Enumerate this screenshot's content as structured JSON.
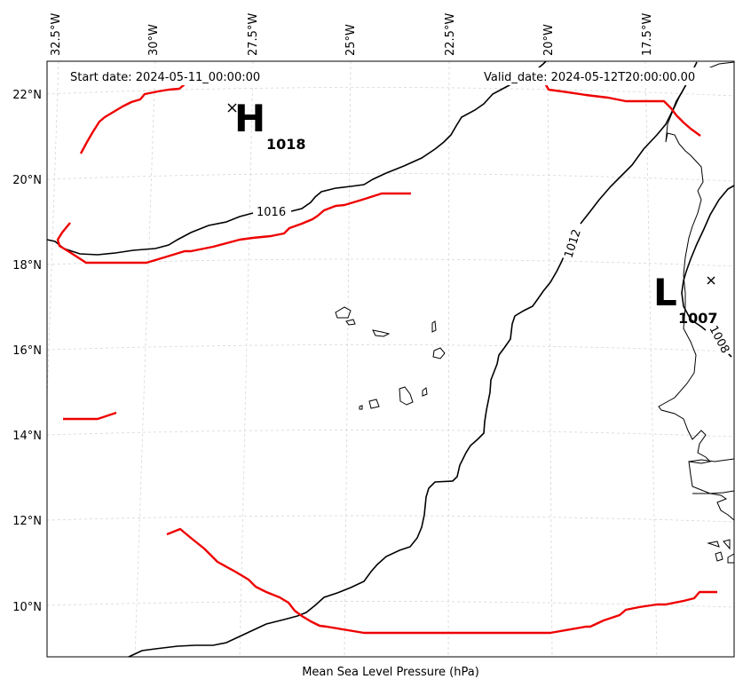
{
  "header": {
    "start_date": "Start date: 2024-05-11_00:00:00",
    "valid_date": "Valid_date: 2024-05-12T20:00:00.00"
  },
  "footer": {
    "caption": "Mean Sea Level Pressure (hPa)"
  },
  "longitude_labels": [
    "32.5°W",
    "30°W",
    "27.5°W",
    "25°W",
    "22.5°W",
    "20°W",
    "17.5°W"
  ],
  "latitude_labels": [
    "22°N",
    "20°N",
    "18°N",
    "16°N",
    "14°N",
    "12°N",
    "10°N"
  ],
  "pressure_centers": [
    {
      "symbol": "H",
      "value": "1018",
      "lon": -28.2,
      "lat": 21.7
    },
    {
      "symbol": "L",
      "value": "1007",
      "lon": -16.4,
      "lat": 17.6
    }
  ],
  "isobar_labels": [
    "1016",
    "1012",
    "1008"
  ],
  "colors": {
    "isobar": "#000000",
    "front": "#ee0000",
    "grid": "#d6d6d6"
  },
  "icons": {
    "center_marker": "x-cross-icon"
  }
}
